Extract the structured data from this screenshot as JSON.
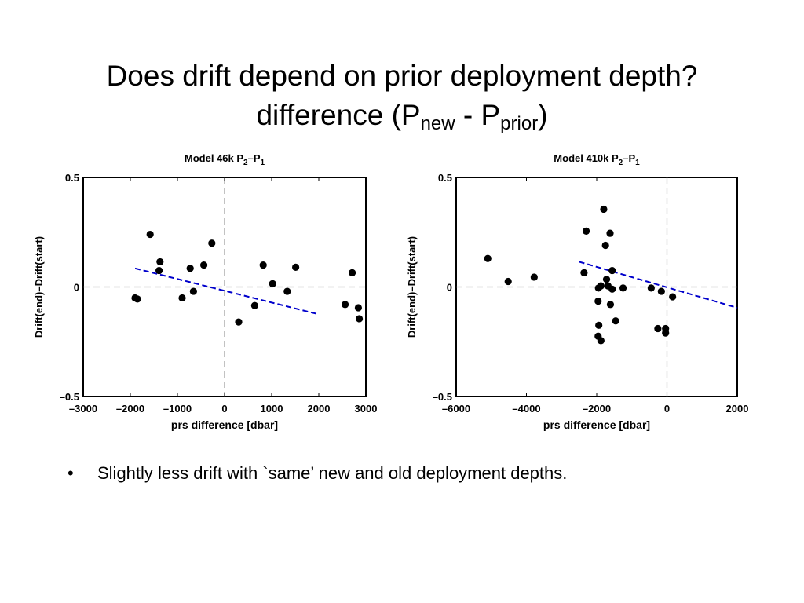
{
  "title": {
    "line1": "Does drift depend on prior deployment depth?",
    "line2_prefix": "difference (P",
    "line2_sub1": "new",
    "line2_mid": " - P",
    "line2_sub2": "prior",
    "line2_suffix": ")"
  },
  "bullets": [
    {
      "marker": "•",
      "text": "Slightly less drift with `same’ new and old deployment depths."
    }
  ],
  "chart_data": [
    {
      "type": "scatter",
      "title": {
        "prefix": "Model 46k P",
        "sub1": "2",
        "mid": "–P",
        "sub2": "1"
      },
      "xlabel": "prs difference [dbar]",
      "ylabel": "Drift(end)–Drift(start)",
      "xlim": [
        -3000,
        3000
      ],
      "ylim": [
        -0.5,
        0.5
      ],
      "xticks": [
        -3000,
        -2000,
        -1000,
        0,
        1000,
        2000,
        3000
      ],
      "xtick_labels": [
        "–3000",
        "–2000",
        "–1000",
        "0",
        "1000",
        "2000",
        "3000"
      ],
      "yticks": [
        -0.5,
        0,
        0.5
      ],
      "ytick_labels": [
        "–0.5",
        "0",
        "0.5"
      ],
      "zero_lines": true,
      "grid": false,
      "marker_color": "#000000",
      "fit_color": "#0000cc",
      "points": [
        [
          -1900,
          -0.05
        ],
        [
          -1850,
          -0.055
        ],
        [
          -1580,
          0.24
        ],
        [
          -1370,
          0.115
        ],
        [
          -1390,
          0.075
        ],
        [
          -900,
          -0.05
        ],
        [
          -730,
          0.085
        ],
        [
          -660,
          -0.02
        ],
        [
          -440,
          0.1
        ],
        [
          -270,
          0.2
        ],
        [
          300,
          -0.16
        ],
        [
          640,
          -0.085
        ],
        [
          820,
          0.1
        ],
        [
          1020,
          0.015
        ],
        [
          1330,
          -0.02
        ],
        [
          1510,
          0.09
        ],
        [
          2560,
          -0.08
        ],
        [
          2710,
          0.065
        ],
        [
          2840,
          -0.095
        ],
        [
          2860,
          -0.145
        ]
      ],
      "fit": [
        [
          -1900,
          0.085
        ],
        [
          2000,
          -0.125
        ]
      ]
    },
    {
      "type": "scatter",
      "title": {
        "prefix": "Model 410k P",
        "sub1": "2",
        "mid": "–P",
        "sub2": "1"
      },
      "xlabel": "prs difference [dbar]",
      "ylabel": "Drift(end)–Drift(start)",
      "xlim": [
        -6000,
        2000
      ],
      "ylim": [
        -0.5,
        0.5
      ],
      "xticks": [
        -6000,
        -4000,
        -2000,
        0,
        2000
      ],
      "xtick_labels": [
        "–6000",
        "–4000",
        "–2000",
        "0",
        "2000"
      ],
      "yticks": [
        -0.5,
        0,
        0.5
      ],
      "ytick_labels": [
        "–0.5",
        "0",
        "0.5"
      ],
      "zero_lines": true,
      "grid": false,
      "marker_color": "#000000",
      "fit_color": "#0000cc",
      "points": [
        [
          -5100,
          0.13
        ],
        [
          -4520,
          0.025
        ],
        [
          -3780,
          0.045
        ],
        [
          -2360,
          0.065
        ],
        [
          -2300,
          0.255
        ],
        [
          -1950,
          -0.005
        ],
        [
          -1880,
          0.005
        ],
        [
          -1960,
          -0.065
        ],
        [
          -1940,
          -0.175
        ],
        [
          -1960,
          -0.225
        ],
        [
          -1880,
          -0.245
        ],
        [
          -1800,
          0.355
        ],
        [
          -1750,
          0.19
        ],
        [
          -1720,
          0.035
        ],
        [
          -1680,
          0.005
        ],
        [
          -1620,
          0.245
        ],
        [
          -1560,
          0.075
        ],
        [
          -1560,
          -0.01
        ],
        [
          -1610,
          -0.08
        ],
        [
          -1460,
          -0.155
        ],
        [
          -1250,
          -0.005
        ],
        [
          -450,
          -0.005
        ],
        [
          -160,
          -0.02
        ],
        [
          -260,
          -0.19
        ],
        [
          -40,
          -0.19
        ],
        [
          -40,
          -0.21
        ],
        [
          160,
          -0.045
        ]
      ],
      "fit": [
        [
          -2500,
          0.115
        ],
        [
          2000,
          -0.095
        ]
      ]
    }
  ]
}
